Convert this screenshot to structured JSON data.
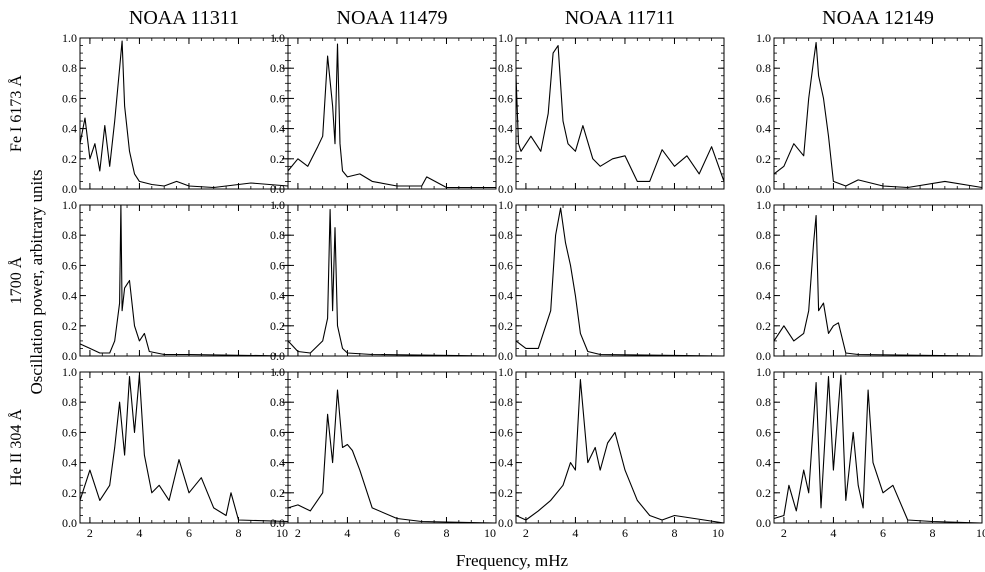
{
  "figure": {
    "xlabel": "Frequency, mHz",
    "ylabel": "Oscillation power, arbitrary units"
  },
  "columns": [
    "NOAA 11311",
    "NOAA 11479",
    "NOAA 11711",
    "NOAA 12149"
  ],
  "rows": [
    "Fe I 6173 Å",
    "1700 Å",
    "He II 304 Å"
  ],
  "axes": {
    "xlim": [
      1.6,
      10
    ],
    "ylim": [
      0,
      1.0
    ],
    "xticks": [
      "2",
      "4",
      "6",
      "8",
      "10"
    ],
    "yticks": [
      "0.0",
      "0.2",
      "0.4",
      "0.6",
      "0.8",
      "1.0"
    ]
  },
  "chart_data": [
    {
      "type": "line",
      "row": "Fe I 6173 Å",
      "column": "NOAA 11311",
      "x": [
        1.6,
        1.8,
        2.0,
        2.2,
        2.4,
        2.6,
        2.8,
        3.0,
        3.2,
        3.3,
        3.4,
        3.6,
        3.8,
        4.0,
        4.5,
        5.0,
        5.5,
        6.0,
        7.0,
        8.5,
        10.0
      ],
      "y": [
        0.3,
        0.47,
        0.2,
        0.3,
        0.12,
        0.42,
        0.15,
        0.45,
        0.8,
        0.98,
        0.55,
        0.25,
        0.1,
        0.05,
        0.03,
        0.02,
        0.05,
        0.02,
        0.01,
        0.04,
        0.02
      ]
    },
    {
      "type": "line",
      "row": "Fe I 6173 Å",
      "column": "NOAA 11479",
      "x": [
        1.6,
        2.0,
        2.4,
        2.8,
        3.0,
        3.2,
        3.4,
        3.5,
        3.6,
        3.7,
        3.8,
        4.0,
        4.5,
        5.0,
        6.0,
        7.0,
        7.2,
        8.0,
        10.0
      ],
      "y": [
        0.12,
        0.2,
        0.15,
        0.28,
        0.35,
        0.88,
        0.55,
        0.3,
        0.96,
        0.3,
        0.12,
        0.08,
        0.1,
        0.05,
        0.02,
        0.02,
        0.08,
        0.01,
        0.01
      ]
    },
    {
      "type": "line",
      "row": "Fe I 6173 Å",
      "column": "NOAA 11711",
      "x": [
        1.6,
        1.7,
        1.8,
        2.2,
        2.6,
        2.9,
        3.1,
        3.3,
        3.5,
        3.7,
        4.0,
        4.3,
        4.7,
        5.0,
        5.5,
        6.0,
        6.5,
        7.0,
        7.5,
        8.0,
        8.5,
        9.0,
        9.5,
        10.0
      ],
      "y": [
        0.75,
        0.3,
        0.25,
        0.35,
        0.25,
        0.5,
        0.9,
        0.95,
        0.45,
        0.3,
        0.25,
        0.42,
        0.2,
        0.15,
        0.2,
        0.22,
        0.05,
        0.05,
        0.26,
        0.15,
        0.22,
        0.1,
        0.28,
        0.05
      ]
    },
    {
      "type": "line",
      "row": "Fe I 6173 Å",
      "column": "NOAA 12149",
      "x": [
        1.6,
        2.0,
        2.4,
        2.8,
        3.0,
        3.2,
        3.3,
        3.4,
        3.6,
        3.8,
        4.0,
        4.5,
        5.0,
        6.0,
        7.0,
        8.5,
        10.0
      ],
      "y": [
        0.1,
        0.15,
        0.3,
        0.22,
        0.6,
        0.85,
        0.97,
        0.75,
        0.6,
        0.35,
        0.05,
        0.02,
        0.06,
        0.02,
        0.01,
        0.05,
        0.01
      ]
    },
    {
      "type": "line",
      "row": "1700 Å",
      "column": "NOAA 11311",
      "x": [
        1.6,
        2.0,
        2.4,
        2.8,
        3.0,
        3.2,
        3.25,
        3.3,
        3.4,
        3.6,
        3.8,
        4.0,
        4.2,
        4.4,
        5.0,
        6.0,
        10.0
      ],
      "y": [
        0.08,
        0.05,
        0.02,
        0.02,
        0.1,
        0.35,
        1.0,
        0.3,
        0.45,
        0.5,
        0.2,
        0.1,
        0.15,
        0.03,
        0.01,
        0.01,
        0.0
      ]
    },
    {
      "type": "line",
      "row": "1700 Å",
      "column": "NOAA 11479",
      "x": [
        1.6,
        2.0,
        2.5,
        3.0,
        3.2,
        3.3,
        3.4,
        3.5,
        3.6,
        3.8,
        4.0,
        5.0,
        10.0
      ],
      "y": [
        0.1,
        0.03,
        0.02,
        0.1,
        0.25,
        0.97,
        0.3,
        0.85,
        0.2,
        0.05,
        0.02,
        0.01,
        0.0
      ]
    },
    {
      "type": "line",
      "row": "1700 Å",
      "column": "NOAA 11711",
      "x": [
        1.6,
        2.0,
        2.5,
        3.0,
        3.2,
        3.4,
        3.6,
        3.8,
        4.0,
        4.2,
        4.5,
        5.0,
        10.0
      ],
      "y": [
        0.1,
        0.05,
        0.05,
        0.3,
        0.8,
        0.98,
        0.75,
        0.6,
        0.4,
        0.15,
        0.03,
        0.01,
        0.0
      ]
    },
    {
      "type": "line",
      "row": "1700 Å",
      "column": "NOAA 12149",
      "x": [
        1.6,
        2.0,
        2.4,
        2.8,
        3.0,
        3.2,
        3.3,
        3.4,
        3.6,
        3.8,
        4.0,
        4.2,
        4.5,
        5.0,
        10.0
      ],
      "y": [
        0.1,
        0.2,
        0.1,
        0.15,
        0.3,
        0.75,
        0.93,
        0.3,
        0.35,
        0.15,
        0.2,
        0.22,
        0.02,
        0.01,
        0.0
      ]
    },
    {
      "type": "line",
      "row": "He II 304 Å",
      "column": "NOAA 11311",
      "x": [
        1.6,
        2.0,
        2.4,
        2.8,
        3.0,
        3.2,
        3.4,
        3.6,
        3.8,
        4.0,
        4.2,
        4.5,
        4.8,
        5.2,
        5.6,
        6.0,
        6.5,
        7.0,
        7.5,
        7.7,
        8.0,
        10.0
      ],
      "y": [
        0.15,
        0.35,
        0.15,
        0.25,
        0.5,
        0.8,
        0.45,
        0.97,
        0.6,
        0.98,
        0.45,
        0.2,
        0.25,
        0.15,
        0.42,
        0.2,
        0.3,
        0.1,
        0.05,
        0.2,
        0.02,
        0.01
      ]
    },
    {
      "type": "line",
      "row": "He II 304 Å",
      "column": "NOAA 11479",
      "x": [
        1.6,
        2.0,
        2.5,
        3.0,
        3.2,
        3.4,
        3.6,
        3.8,
        4.0,
        4.2,
        4.5,
        5.0,
        6.0,
        7.0,
        10.0
      ],
      "y": [
        0.1,
        0.12,
        0.08,
        0.2,
        0.72,
        0.4,
        0.88,
        0.5,
        0.52,
        0.48,
        0.35,
        0.1,
        0.03,
        0.01,
        0.0
      ]
    },
    {
      "type": "line",
      "row": "He II 304 Å",
      "column": "NOAA 11711",
      "x": [
        1.6,
        2.0,
        2.5,
        3.0,
        3.5,
        3.8,
        4.0,
        4.2,
        4.5,
        4.8,
        5.0,
        5.3,
        5.6,
        6.0,
        6.5,
        7.0,
        7.5,
        8.0,
        10.0
      ],
      "y": [
        0.05,
        0.02,
        0.08,
        0.15,
        0.25,
        0.4,
        0.35,
        0.95,
        0.4,
        0.5,
        0.35,
        0.53,
        0.6,
        0.35,
        0.15,
        0.05,
        0.02,
        0.05,
        0.0
      ]
    },
    {
      "type": "line",
      "row": "He II 304 Å",
      "column": "NOAA 12149",
      "x": [
        1.6,
        2.0,
        2.2,
        2.5,
        2.8,
        3.0,
        3.3,
        3.5,
        3.8,
        4.0,
        4.3,
        4.5,
        4.8,
        5.0,
        5.2,
        5.4,
        5.6,
        6.0,
        6.4,
        7.0,
        8.0,
        10.0
      ],
      "y": [
        0.03,
        0.05,
        0.25,
        0.08,
        0.35,
        0.2,
        0.93,
        0.1,
        0.97,
        0.35,
        0.98,
        0.15,
        0.6,
        0.25,
        0.1,
        0.88,
        0.4,
        0.2,
        0.25,
        0.02,
        0.01,
        0.0
      ]
    }
  ]
}
